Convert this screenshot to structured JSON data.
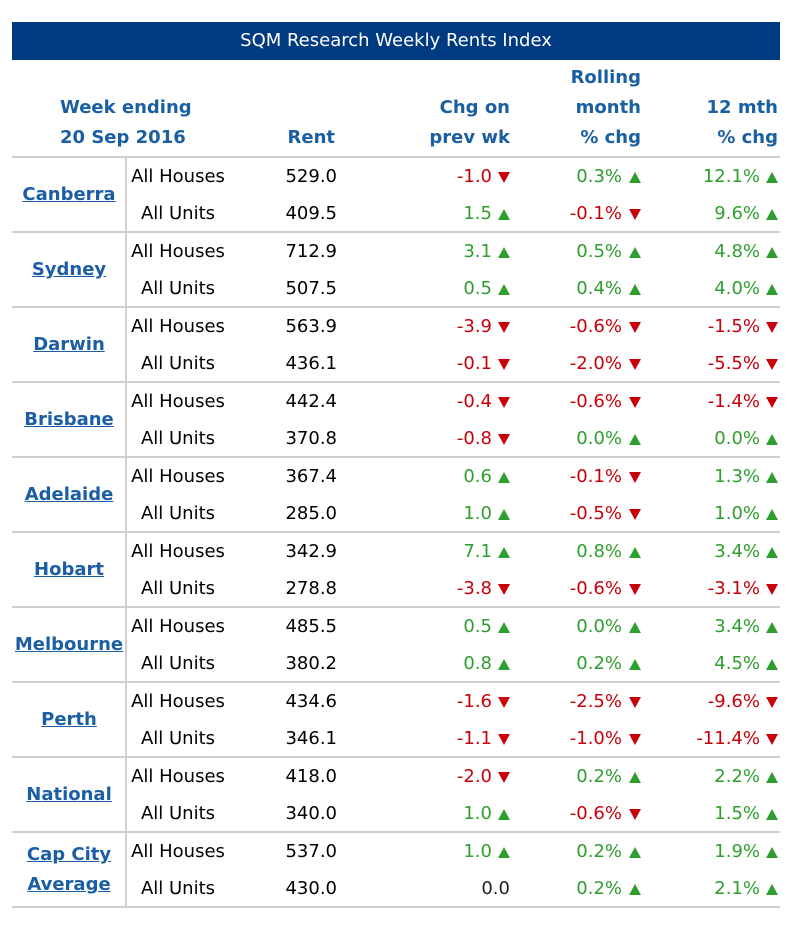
{
  "title": "SQM Research Weekly Rents Index",
  "header": {
    "week": "Week ending",
    "date": "20 Sep 2016",
    "rent": "Rent",
    "chg": [
      "Chg on",
      "prev wk"
    ],
    "rolling": [
      "Rolling",
      "month",
      "% chg"
    ],
    "annual": [
      "12 mth",
      "% chg"
    ]
  },
  "groups": [
    {
      "city": "Canberra",
      "rows": [
        [
          "All Houses",
          "529.0",
          "-1.0",
          "0.3%",
          "12.1%"
        ],
        [
          "All Units",
          "409.5",
          "1.5",
          "-0.1%",
          "9.6%"
        ]
      ]
    },
    {
      "city": "Sydney",
      "rows": [
        [
          "All Houses",
          "712.9",
          "3.1",
          "0.5%",
          "4.8%"
        ],
        [
          "All Units",
          "507.5",
          "0.5",
          "0.4%",
          "4.0%"
        ]
      ]
    },
    {
      "city": "Darwin",
      "rows": [
        [
          "All Houses",
          "563.9",
          "-3.9",
          "-0.6%",
          "-1.5%"
        ],
        [
          "All Units",
          "436.1",
          "-0.1",
          "-2.0%",
          "-5.5%"
        ]
      ]
    },
    {
      "city": "Brisbane",
      "rows": [
        [
          "All Houses",
          "442.4",
          "-0.4",
          "-0.6%",
          "-1.4%"
        ],
        [
          "All Units",
          "370.8",
          "-0.8",
          "0.0%",
          "0.0%"
        ]
      ]
    },
    {
      "city": "Adelaide",
      "rows": [
        [
          "All Houses",
          "367.4",
          "0.6",
          "-0.1%",
          "1.3%"
        ],
        [
          "All Units",
          "285.0",
          "1.0",
          "-0.5%",
          "1.0%"
        ]
      ]
    },
    {
      "city": "Hobart",
      "rows": [
        [
          "All Houses",
          "342.9",
          "7.1",
          "0.8%",
          "3.4%"
        ],
        [
          "All Units",
          "278.8",
          "-3.8",
          "-0.6%",
          "-3.1%"
        ]
      ]
    },
    {
      "city": "Melbourne",
      "rows": [
        [
          "All Houses",
          "485.5",
          "0.5",
          "0.0%",
          "3.4%"
        ],
        [
          "All Units",
          "380.2",
          "0.8",
          "0.2%",
          "4.5%"
        ]
      ]
    },
    {
      "city": "Perth",
      "rows": [
        [
          "All Houses",
          "434.6",
          "-1.6",
          "-2.5%",
          "-9.6%"
        ],
        [
          "All Units",
          "346.1",
          "-1.1",
          "-1.0%",
          "-11.4%"
        ]
      ]
    },
    {
      "city": "National",
      "rows": [
        [
          "All Houses",
          "418.0",
          "-2.0",
          "0.2%",
          "2.2%"
        ],
        [
          "All Units",
          "340.0",
          "1.0",
          "-0.6%",
          "1.5%"
        ]
      ]
    },
    {
      "city": "Cap City Average",
      "rows": [
        [
          "All Houses",
          "537.0",
          "1.0",
          "0.2%",
          "1.9%"
        ],
        [
          "All Units",
          "430.0",
          "0.0",
          "0.2%",
          "2.1%"
        ]
      ]
    }
  ]
}
